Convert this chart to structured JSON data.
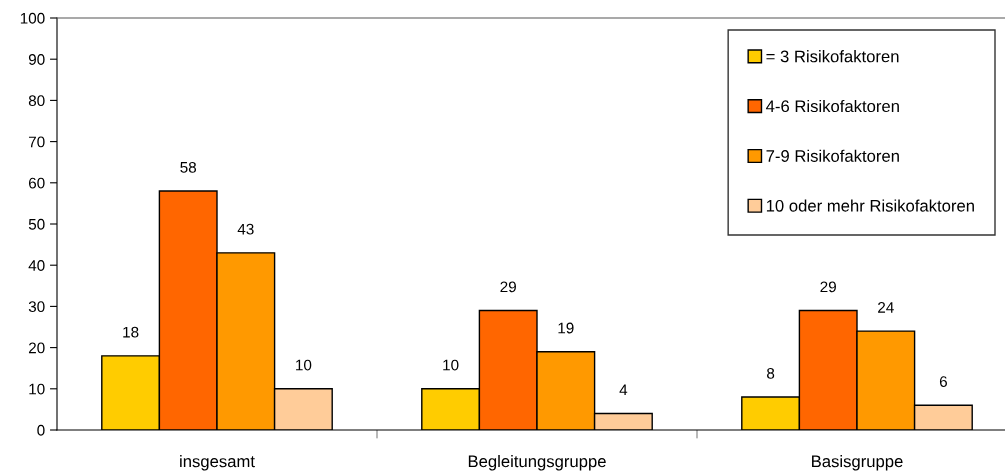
{
  "chart_data": {
    "type": "bar",
    "categories": [
      "insgesamt",
      "Begleitungsgruppe",
      "Basisgruppe"
    ],
    "series": [
      {
        "name": "= 3 Risikofaktoren",
        "color": "#ffcc00",
        "values": [
          18,
          10,
          8
        ]
      },
      {
        "name": "4-6 Risikofaktoren",
        "color": "#ff6600",
        "values": [
          58,
          29,
          29
        ]
      },
      {
        "name": "7-9 Risikofaktoren",
        "color": "#ff9900",
        "values": [
          43,
          19,
          24
        ]
      },
      {
        "name": "10 oder mehr Risikofaktoren",
        "color": "#ffcc99",
        "values": [
          10,
          4,
          6
        ]
      }
    ],
    "ylim": [
      0,
      100
    ],
    "yticks": [
      0,
      10,
      20,
      30,
      40,
      50,
      60,
      70,
      80,
      90,
      100
    ],
    "data_labels": true,
    "grid": false,
    "legend": "top right"
  }
}
